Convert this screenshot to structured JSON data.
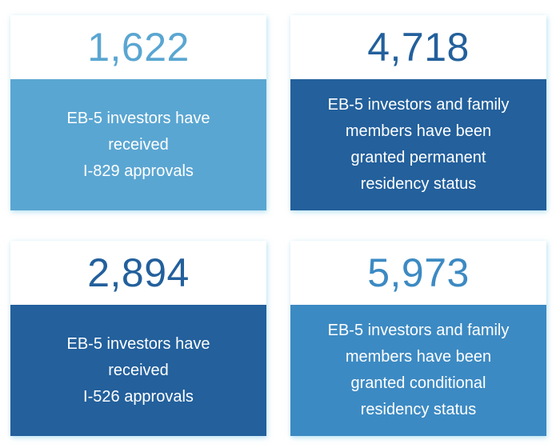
{
  "colors": {
    "light_blue": "#5aa6d2",
    "dark_blue": "#23609c",
    "mid_blue": "#3c8ac3",
    "shadow": "#78c8e6"
  },
  "stats": [
    {
      "number": "1,622",
      "lines": [
        "EB-5 investors have",
        "received",
        "I-829 approvals"
      ]
    },
    {
      "number": "4,718",
      "lines": [
        "EB-5 investors and family",
        "members have been",
        "granted permanent",
        "residency status"
      ]
    },
    {
      "number": "2,894",
      "lines": [
        "EB-5 investors have",
        "received",
        "I-526 approvals"
      ]
    },
    {
      "number": "5,973",
      "lines": [
        "EB-5 investors and family",
        "members have been",
        "granted conditional",
        "residency status"
      ]
    }
  ]
}
